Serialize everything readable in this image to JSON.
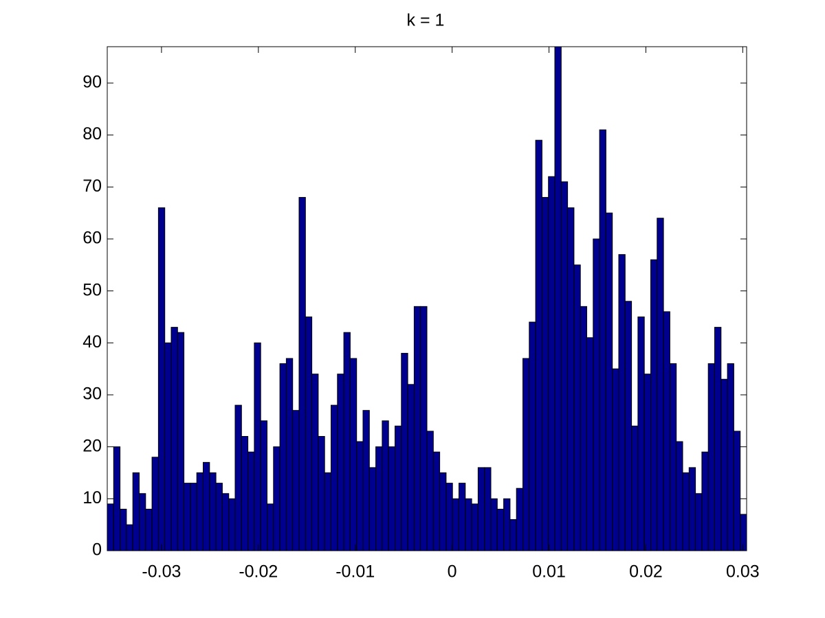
{
  "chart_data": {
    "type": "histogram",
    "title": "k = 1",
    "bins": [
      -0.0356,
      -0.03494,
      -0.03428,
      -0.03362,
      -0.03296,
      -0.0323,
      -0.03164,
      -0.03098,
      -0.03032,
      -0.02966,
      -0.029,
      -0.02834,
      -0.02768,
      -0.02702,
      -0.02636,
      -0.0257,
      -0.02504,
      -0.02438,
      -0.02372,
      -0.02306,
      -0.0224,
      -0.02174,
      -0.02108,
      -0.02042,
      -0.01976,
      -0.0191,
      -0.01844,
      -0.01778,
      -0.01712,
      -0.01646,
      -0.0158,
      -0.01514,
      -0.01448,
      -0.01382,
      -0.01316,
      -0.0125,
      -0.01184,
      -0.01118,
      -0.01052,
      -0.00986,
      -0.0092,
      -0.00854,
      -0.00788,
      -0.00722,
      -0.00656,
      -0.0059,
      -0.00524,
      -0.00458,
      -0.00392,
      -0.00326,
      -0.0026,
      -0.00194,
      -0.00128,
      -0.00062,
      4e-05,
      0.0007,
      0.00136,
      0.00202,
      0.00268,
      0.00334,
      0.004,
      0.00466,
      0.00532,
      0.00598,
      0.00664,
      0.0073,
      0.00796,
      0.00862,
      0.00928,
      0.00994,
      0.0106,
      0.01126,
      0.01192,
      0.01258,
      0.01324,
      0.0139,
      0.01456,
      0.01522,
      0.01588,
      0.01654,
      0.0172,
      0.01786,
      0.01852,
      0.01918,
      0.01984,
      0.0205,
      0.02116,
      0.02182,
      0.02248,
      0.02314,
      0.0238,
      0.02446,
      0.02512,
      0.02578,
      0.02644,
      0.0271,
      0.02776,
      0.02842,
      0.02908,
      0.02974,
      0.0304
    ],
    "values": [
      9,
      20,
      8,
      5,
      15,
      11,
      8,
      18,
      66,
      40,
      43,
      42,
      13,
      13,
      15,
      17,
      15,
      13,
      11,
      10,
      28,
      22,
      19,
      40,
      25,
      9,
      20,
      36,
      37,
      27,
      68,
      45,
      34,
      22,
      15,
      28,
      34,
      42,
      37,
      21,
      27,
      16,
      20,
      25,
      20,
      24,
      38,
      32,
      47,
      47,
      23,
      19,
      15,
      13,
      10,
      13,
      10,
      9,
      16,
      16,
      10,
      8,
      10,
      6,
      12,
      37,
      44,
      79,
      68,
      72,
      97,
      71,
      66,
      55,
      47,
      41,
      60,
      81,
      65,
      35,
      57,
      48,
      24,
      45,
      34,
      56,
      64,
      46,
      36,
      21,
      15,
      16,
      11,
      19,
      36,
      43,
      33,
      36,
      23,
      7
    ],
    "color": "#00008f",
    "xlim": [
      -0.0356,
      0.0304
    ],
    "xticks": [
      -0.03,
      -0.02,
      -0.01,
      0,
      0.01,
      0.02,
      0.03
    ],
    "ylim": [
      0,
      97
    ],
    "yticks": [
      0,
      10,
      20,
      30,
      40,
      50,
      60,
      70,
      80,
      90
    ]
  }
}
